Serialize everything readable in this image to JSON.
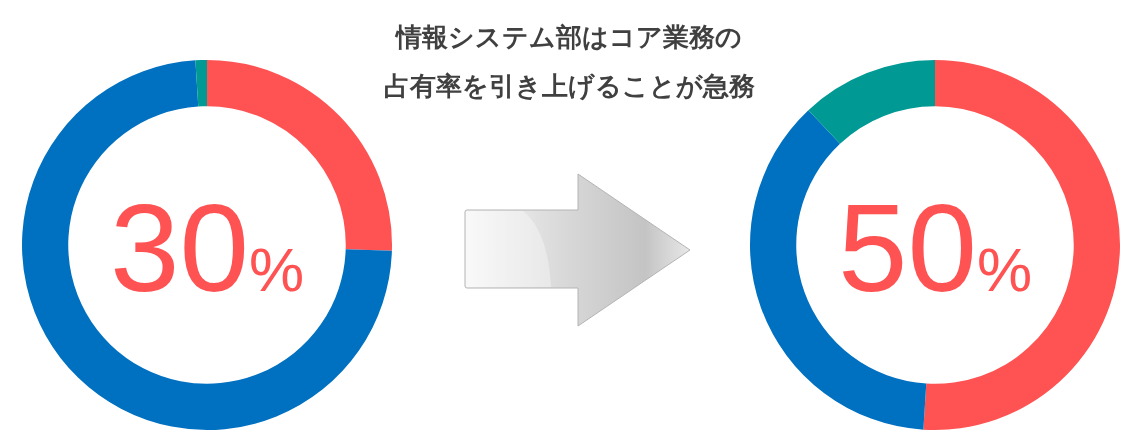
{
  "chart_data": [
    {
      "type": "donut",
      "title": "情報システム部はコア業務の",
      "subtitle": "占有率を引き上げることが急務",
      "categories": [
        null,
        null,
        null
      ],
      "values": [
        25.5,
        73.5,
        1
      ],
      "colors": [
        "#ff5252",
        "#0070c0",
        "#009994"
      ],
      "annotations": [
        "30%"
      ]
    },
    {
      "type": "donut",
      "categories": [
        null,
        null,
        null
      ],
      "values": [
        51,
        37,
        12
      ],
      "colors": [
        "#ff5252",
        "#0070c0",
        "#009994"
      ],
      "annotations": [
        "50%"
      ]
    }
  ]
}
